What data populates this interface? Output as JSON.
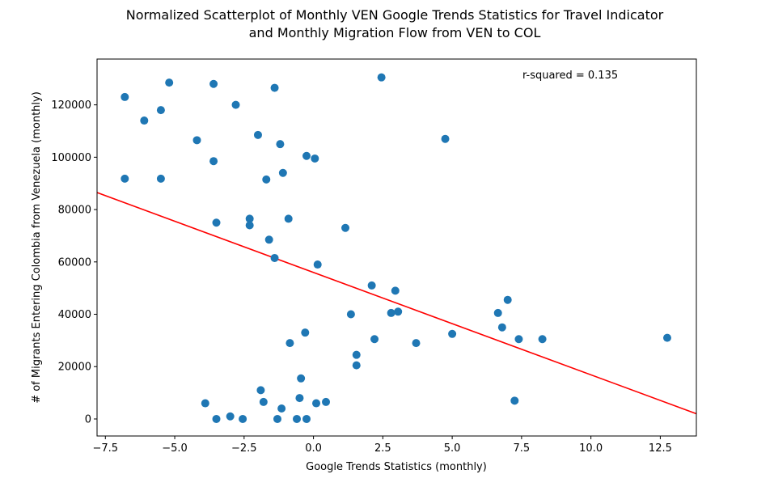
{
  "chart_data": {
    "type": "scatter",
    "title_lines": [
      "Normalized Scatterplot of Monthly VEN Google Trends Statistics for Travel Indicator",
      "and Monthly Migration Flow from VEN to COL"
    ],
    "xlabel": "Google Trends Statistics (monthly)",
    "ylabel": "# of Migrants Entering Colombia from Venezuela (monthly)",
    "xlim": [
      -7.8,
      13.8
    ],
    "ylim": [
      -6500,
      137500
    ],
    "x_ticks": [
      -7.5,
      -5.0,
      -2.5,
      0.0,
      2.5,
      5.0,
      7.5,
      10.0,
      12.5
    ],
    "x_tick_labels": [
      "−7.5",
      "−5.0",
      "−2.5",
      "0.0",
      "2.5",
      "5.0",
      "7.5",
      "10.0",
      "12.5"
    ],
    "y_ticks": [
      0,
      20000,
      40000,
      60000,
      80000,
      100000,
      120000
    ],
    "y_tick_labels": [
      "0",
      "20000",
      "40000",
      "60000",
      "80000",
      "100000",
      "120000"
    ],
    "annotation": "r-squared = 0.135",
    "point_color": "#1f77b4",
    "line_color": "#ff0000",
    "regression_line": {
      "x": [
        -7.8,
        13.8
      ],
      "y": [
        86500,
        2000
      ]
    },
    "points": [
      {
        "x": -6.8,
        "y": 123000
      },
      {
        "x": -6.8,
        "y": 91800
      },
      {
        "x": -6.1,
        "y": 114000
      },
      {
        "x": -5.5,
        "y": 118000
      },
      {
        "x": -5.5,
        "y": 91800
      },
      {
        "x": -5.2,
        "y": 128500
      },
      {
        "x": -4.2,
        "y": 106500
      },
      {
        "x": -3.6,
        "y": 128000
      },
      {
        "x": -3.6,
        "y": 98500
      },
      {
        "x": -3.5,
        "y": 75000
      },
      {
        "x": -2.8,
        "y": 120000
      },
      {
        "x": -2.3,
        "y": 76500
      },
      {
        "x": -2.3,
        "y": 74000
      },
      {
        "x": -2.0,
        "y": 108500
      },
      {
        "x": -1.7,
        "y": 91500
      },
      {
        "x": -1.6,
        "y": 68500
      },
      {
        "x": -1.4,
        "y": 126500
      },
      {
        "x": -1.4,
        "y": 61500
      },
      {
        "x": -1.2,
        "y": 105000
      },
      {
        "x": -1.1,
        "y": 94000
      },
      {
        "x": -0.9,
        "y": 76500
      },
      {
        "x": -0.25,
        "y": 100500
      },
      {
        "x": 0.05,
        "y": 99500
      },
      {
        "x": 0.15,
        "y": 59000
      },
      {
        "x": 1.15,
        "y": 73000
      },
      {
        "x": 2.1,
        "y": 51000
      },
      {
        "x": 2.45,
        "y": 130500
      },
      {
        "x": 2.95,
        "y": 49000
      },
      {
        "x": 1.35,
        "y": 40000
      },
      {
        "x": 2.8,
        "y": 40500
      },
      {
        "x": 3.05,
        "y": 41000
      },
      {
        "x": 2.2,
        "y": 30500
      },
      {
        "x": 1.55,
        "y": 24500
      },
      {
        "x": 1.55,
        "y": 20500
      },
      {
        "x": 3.7,
        "y": 29000
      },
      {
        "x": 4.75,
        "y": 107000
      },
      {
        "x": 5.0,
        "y": 32500
      },
      {
        "x": 6.65,
        "y": 40500
      },
      {
        "x": 7.0,
        "y": 45500
      },
      {
        "x": 6.8,
        "y": 35000
      },
      {
        "x": 7.4,
        "y": 30500
      },
      {
        "x": 8.25,
        "y": 30500
      },
      {
        "x": 7.25,
        "y": 7000
      },
      {
        "x": 12.75,
        "y": 31000
      },
      {
        "x": -0.3,
        "y": 33000
      },
      {
        "x": -0.85,
        "y": 29000
      },
      {
        "x": -0.45,
        "y": 15500
      },
      {
        "x": -1.9,
        "y": 11000
      },
      {
        "x": -1.8,
        "y": 6500
      },
      {
        "x": -3.9,
        "y": 6000
      },
      {
        "x": -1.15,
        "y": 4000
      },
      {
        "x": -0.5,
        "y": 8000
      },
      {
        "x": 0.1,
        "y": 6000
      },
      {
        "x": 0.45,
        "y": 6500
      },
      {
        "x": -3.5,
        "y": 0
      },
      {
        "x": -3.0,
        "y": 1000
      },
      {
        "x": -2.55,
        "y": 0
      },
      {
        "x": -1.3,
        "y": 0
      },
      {
        "x": -0.6,
        "y": 0
      },
      {
        "x": -0.25,
        "y": 0
      }
    ]
  }
}
